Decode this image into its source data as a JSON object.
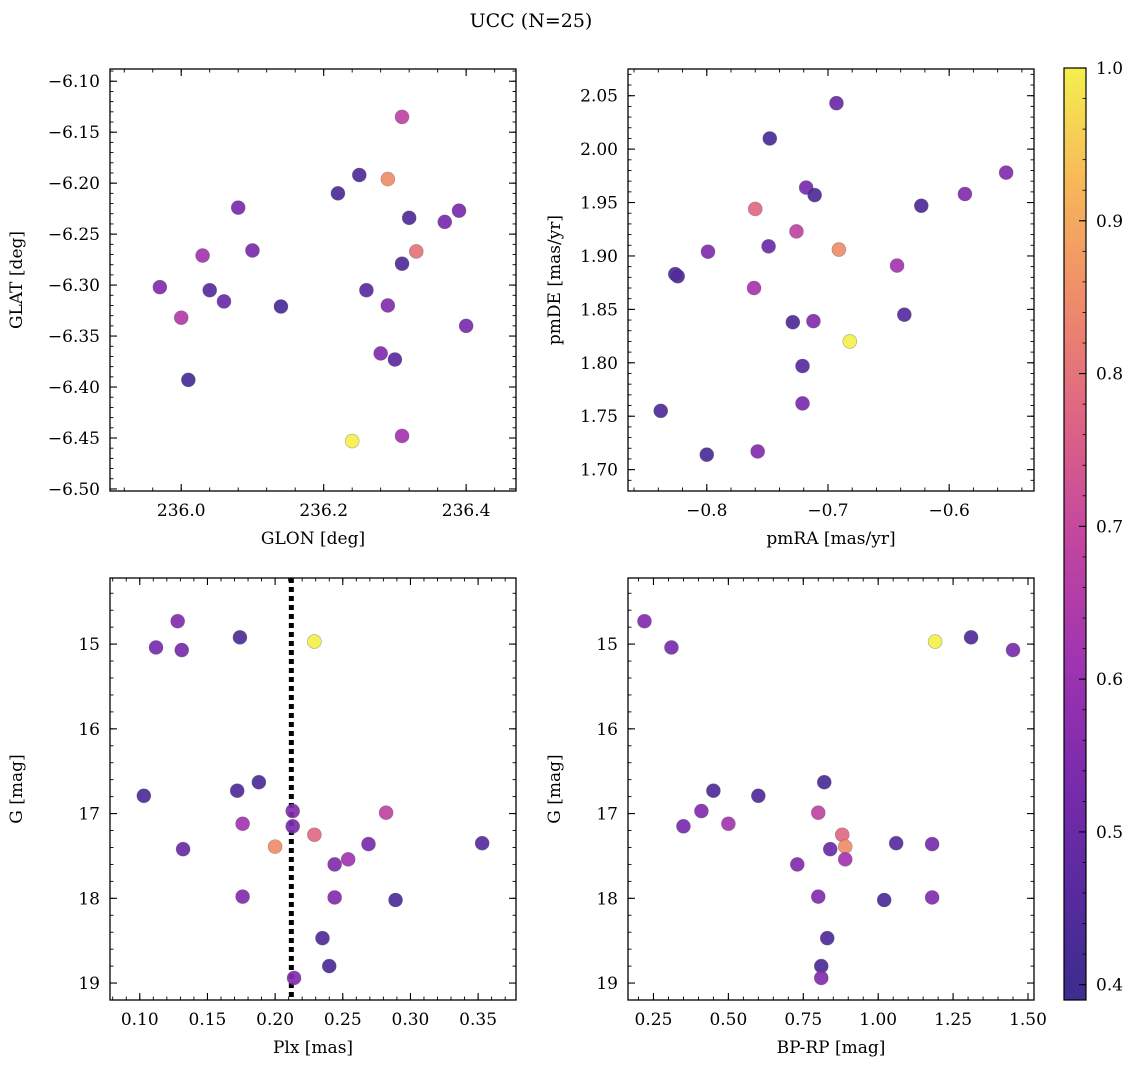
{
  "figure": {
    "title": "UCC (N=25)"
  },
  "colorbar": {
    "min": 0.39,
    "max": 1.0,
    "ticks": [
      0.4,
      0.5,
      0.6,
      0.7,
      0.8,
      0.9,
      1.0
    ],
    "tick_labels": [
      "0.4",
      "0.5",
      "0.6",
      "0.7",
      "0.8",
      "0.9",
      "1.0"
    ],
    "colormap": "plasma",
    "colormap_stops": [
      "#3b2d8e",
      "#5a2aa0",
      "#7e2bae",
      "#a335b0",
      "#c4479f",
      "#de6584",
      "#ef8b6a",
      "#f8b65a",
      "#f4f04d"
    ]
  },
  "chart_data": [
    {
      "type": "scatter",
      "xlabel": "GLON [deg]",
      "ylabel": "GLAT [deg]",
      "xlim": [
        235.9,
        236.47
      ],
      "ylim": [
        -6.502,
        -6.088
      ],
      "xticks": [
        236.0,
        236.2,
        236.4
      ],
      "xtick_labels": [
        "236.0",
        "236.2",
        "236.4"
      ],
      "yticks": [
        -6.5,
        -6.45,
        -6.4,
        -6.35,
        -6.3,
        -6.25,
        -6.2,
        -6.15,
        -6.1
      ],
      "ytick_labels": [
        "−6.50",
        "−6.45",
        "−6.40",
        "−6.35",
        "−6.30",
        "−6.25",
        "−6.20",
        "−6.15",
        "−6.10"
      ],
      "x": [
        236.31,
        236.25,
        236.22,
        236.29,
        236.08,
        236.32,
        236.39,
        236.37,
        236.1,
        236.03,
        236.33,
        236.31,
        235.97,
        236.04,
        236.26,
        236.06,
        236.14,
        236.29,
        236.0,
        236.4,
        236.28,
        236.3,
        236.01,
        236.31,
        236.24
      ],
      "y": [
        -6.135,
        -6.192,
        -6.21,
        -6.196,
        -6.224,
        -6.234,
        -6.227,
        -6.238,
        -6.266,
        -6.271,
        -6.267,
        -6.279,
        -6.302,
        -6.305,
        -6.305,
        -6.316,
        -6.321,
        -6.32,
        -6.332,
        -6.34,
        -6.367,
        -6.373,
        -6.393,
        -6.448,
        -6.453
      ],
      "color_values": [
        0.68,
        0.44,
        0.43,
        0.85,
        0.53,
        0.44,
        0.53,
        0.53,
        0.53,
        0.62,
        0.8,
        0.44,
        0.55,
        0.46,
        0.46,
        0.5,
        0.43,
        0.55,
        0.65,
        0.53,
        0.55,
        0.47,
        0.42,
        0.62,
        1.0
      ]
    },
    {
      "type": "scatter",
      "xlabel": "pmRA [mas/yr]",
      "ylabel": "pmDE [mas/yr]",
      "xlim": [
        -0.865,
        -0.53
      ],
      "ylim": [
        1.68,
        2.075
      ],
      "xticks": [
        -0.8,
        -0.7,
        -0.6
      ],
      "xtick_labels": [
        "−0.8",
        "−0.7",
        "−0.6"
      ],
      "yticks": [
        1.7,
        1.75,
        1.8,
        1.85,
        1.9,
        1.95,
        2.0,
        2.05
      ],
      "ytick_labels": [
        "1.70",
        "1.75",
        "1.80",
        "1.85",
        "1.90",
        "1.95",
        "2.00",
        "2.05"
      ],
      "x": [
        -0.693,
        -0.748,
        -0.553,
        -0.718,
        -0.711,
        -0.587,
        -0.623,
        -0.76,
        -0.726,
        -0.749,
        -0.799,
        -0.691,
        -0.826,
        -0.824,
        -0.643,
        -0.761,
        -0.637,
        -0.729,
        -0.712,
        -0.682,
        -0.721,
        -0.721,
        -0.838,
        -0.758,
        -0.8
      ],
      "y": [
        2.043,
        2.01,
        1.978,
        1.964,
        1.957,
        1.958,
        1.947,
        1.944,
        1.923,
        1.909,
        1.904,
        1.906,
        1.883,
        1.881,
        1.891,
        1.87,
        1.845,
        1.838,
        1.839,
        1.82,
        1.797,
        1.762,
        1.755,
        1.717,
        1.714
      ],
      "color_values": [
        0.5,
        0.43,
        0.55,
        0.53,
        0.44,
        0.55,
        0.44,
        0.78,
        0.68,
        0.5,
        0.55,
        0.85,
        0.44,
        0.44,
        0.62,
        0.62,
        0.46,
        0.44,
        0.55,
        1.0,
        0.46,
        0.53,
        0.44,
        0.55,
        0.43
      ]
    },
    {
      "type": "scatter",
      "xlabel": "Plx [mas]",
      "ylabel": "G [mag]",
      "xlim": [
        0.078,
        0.378
      ],
      "ylim": [
        19.2,
        14.22
      ],
      "y_inverted": true,
      "xticks": [
        0.1,
        0.15,
        0.2,
        0.25,
        0.3,
        0.35
      ],
      "xtick_labels": [
        "0.10",
        "0.15",
        "0.20",
        "0.25",
        "0.30",
        "0.35"
      ],
      "yticks": [
        15,
        16,
        17,
        18,
        19
      ],
      "ytick_labels": [
        "15",
        "16",
        "17",
        "18",
        "19"
      ],
      "reference_line": {
        "x": 0.212,
        "style": "dotted"
      },
      "x": [
        0.128,
        0.112,
        0.131,
        0.174,
        0.229,
        0.103,
        0.172,
        0.188,
        0.213,
        0.282,
        0.213,
        0.176,
        0.229,
        0.2,
        0.132,
        0.269,
        0.353,
        0.254,
        0.244,
        0.176,
        0.244,
        0.289,
        0.235,
        0.24,
        0.214
      ],
      "y": [
        14.73,
        15.04,
        15.07,
        14.92,
        14.97,
        16.79,
        16.73,
        16.63,
        16.97,
        16.99,
        17.15,
        17.12,
        17.25,
        17.39,
        17.42,
        17.36,
        17.35,
        17.54,
        17.6,
        17.98,
        17.99,
        18.02,
        18.47,
        18.8,
        18.94
      ],
      "color_values": [
        0.55,
        0.53,
        0.53,
        0.44,
        1.0,
        0.44,
        0.44,
        0.43,
        0.55,
        0.68,
        0.53,
        0.62,
        0.78,
        0.85,
        0.5,
        0.53,
        0.46,
        0.62,
        0.55,
        0.55,
        0.55,
        0.44,
        0.44,
        0.43,
        0.55
      ]
    },
    {
      "type": "scatter",
      "xlabel": "BP-RP [mag]",
      "ylabel": "G [mag]",
      "xlim": [
        0.165,
        1.52
      ],
      "ylim": [
        19.2,
        14.22
      ],
      "y_inverted": true,
      "xticks": [
        0.25,
        0.5,
        0.75,
        1.0,
        1.25,
        1.5
      ],
      "xtick_labels": [
        "0.25",
        "0.50",
        "0.75",
        "1.00",
        "1.25",
        "1.50"
      ],
      "yticks": [
        15,
        16,
        17,
        18,
        19
      ],
      "ytick_labels": [
        "15",
        "16",
        "17",
        "18",
        "19"
      ],
      "x": [
        0.22,
        0.31,
        1.19,
        1.31,
        1.45,
        0.45,
        0.6,
        0.82,
        0.41,
        0.8,
        0.35,
        0.5,
        0.88,
        0.89,
        0.84,
        1.06,
        1.18,
        0.89,
        0.73,
        0.8,
        1.18,
        1.02,
        0.83,
        0.81,
        0.81
      ],
      "y": [
        14.73,
        15.04,
        14.97,
        14.92,
        15.07,
        16.73,
        16.79,
        16.63,
        16.97,
        16.99,
        17.15,
        17.12,
        17.25,
        17.39,
        17.42,
        17.35,
        17.36,
        17.54,
        17.6,
        17.98,
        17.99,
        18.02,
        18.47,
        18.8,
        18.94
      ],
      "color_values": [
        0.55,
        0.53,
        1.0,
        0.44,
        0.53,
        0.44,
        0.44,
        0.43,
        0.55,
        0.68,
        0.53,
        0.62,
        0.78,
        0.85,
        0.5,
        0.46,
        0.53,
        0.62,
        0.55,
        0.55,
        0.55,
        0.44,
        0.44,
        0.43,
        0.55
      ]
    }
  ]
}
